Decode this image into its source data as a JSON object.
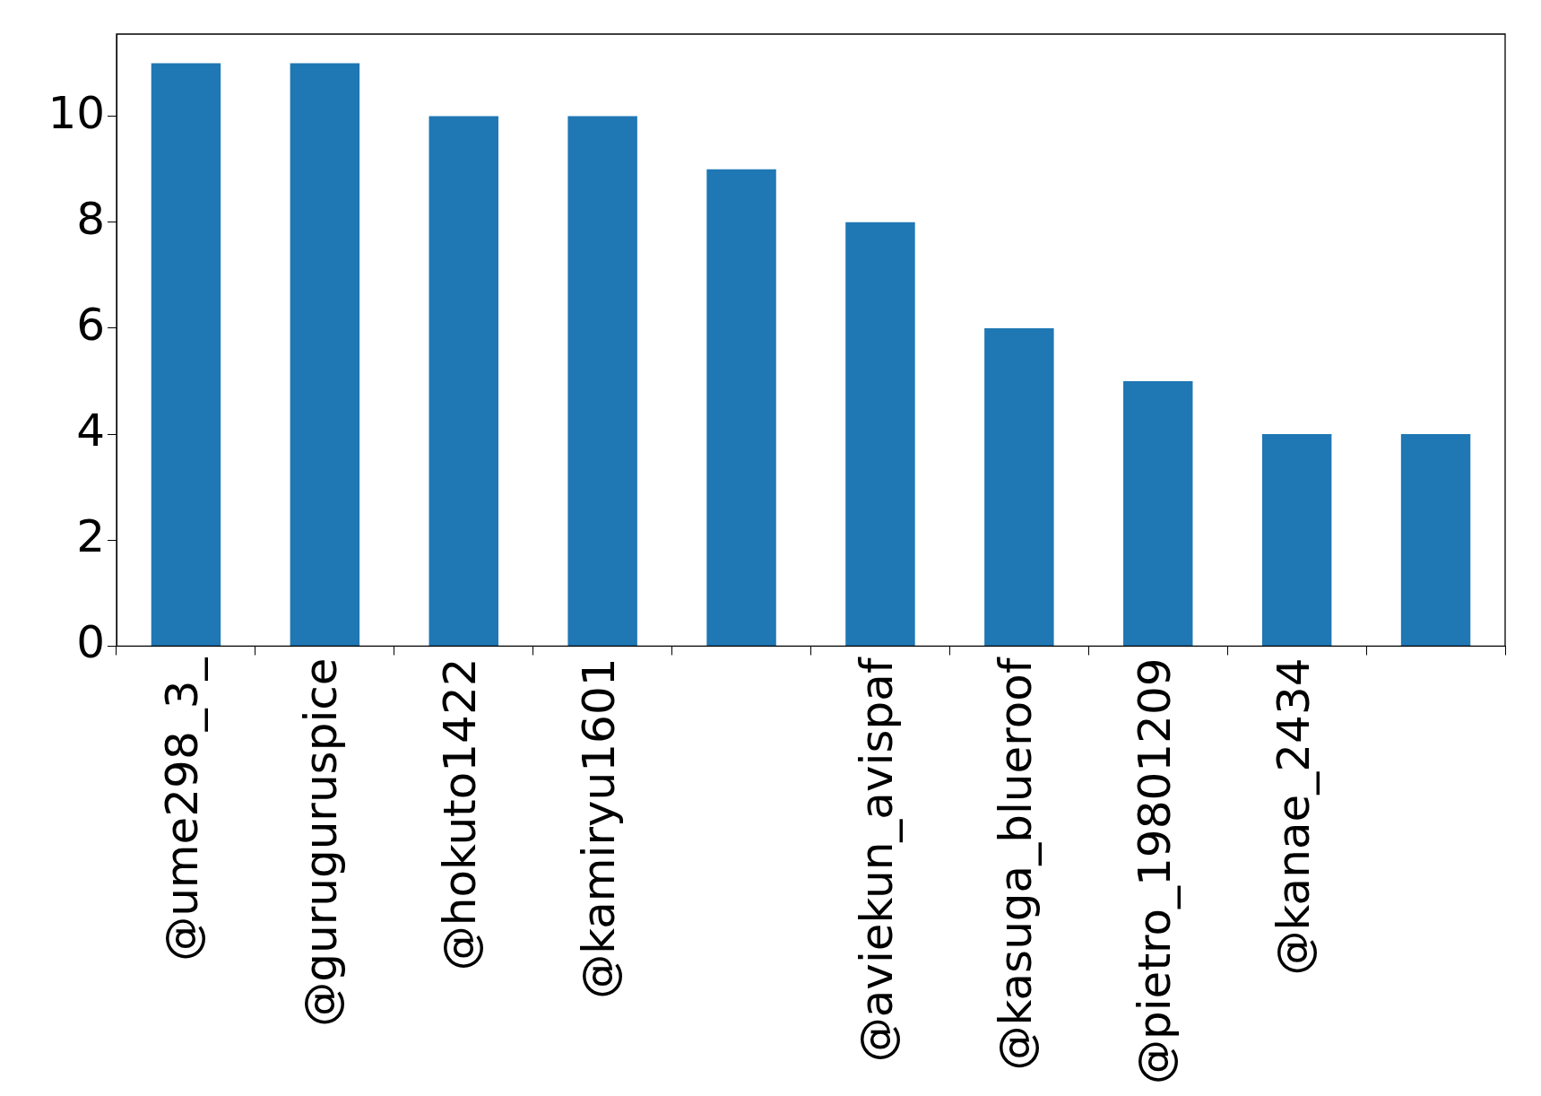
{
  "chart_data": {
    "type": "bar",
    "categories": [
      "@ume298_3_",
      "@guruguruspice",
      "@hokuto1422",
      "@kamiryu1601",
      null,
      "@aviekun_avispaf",
      "@kasuga_blueroof",
      "@pietro_19801209",
      "@kanae_2434",
      null
    ],
    "values": [
      11,
      11,
      10,
      10,
      9,
      8,
      6,
      5,
      4,
      4
    ],
    "color": "#1f77b4",
    "ylim": [
      0,
      11.55
    ],
    "yticks": [
      0,
      2,
      4,
      6,
      8,
      10
    ],
    "grid": false,
    "legend": false
  }
}
